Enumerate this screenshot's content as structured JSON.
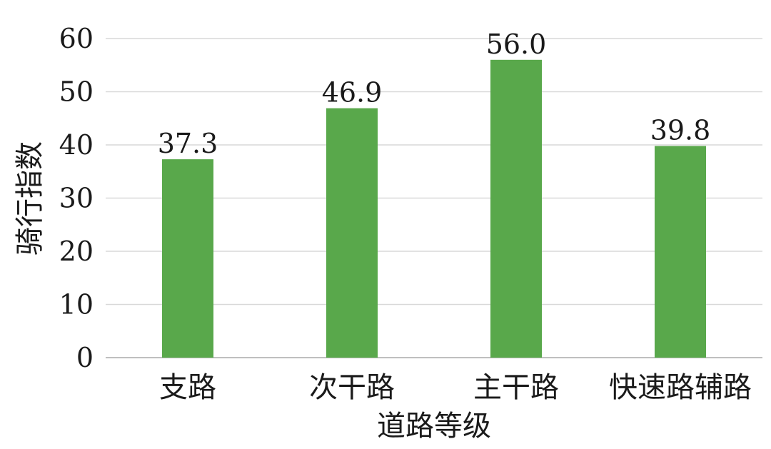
{
  "chart_data": {
    "type": "bar",
    "title": "",
    "xlabel": "道路等级",
    "ylabel": "骑行指数",
    "categories": [
      "支路",
      "次干路",
      "主干路",
      "快速路辅路"
    ],
    "values": [
      37.3,
      46.9,
      56.0,
      39.8
    ],
    "value_labels": [
      "37.3",
      "46.9",
      "56.0",
      "39.8"
    ],
    "ylim": [
      0,
      60
    ],
    "yticks": [
      0,
      10,
      20,
      30,
      40,
      50,
      60
    ],
    "grid": true,
    "legend": "none",
    "colors": {
      "bar": "#59a84b",
      "grid": "#d9d9d9",
      "axis": "#bfbfbf",
      "text": "#1a1a1a"
    }
  }
}
